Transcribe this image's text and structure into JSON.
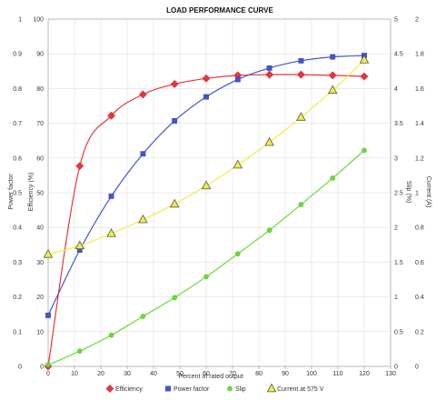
{
  "chart_data": {
    "type": "scatter",
    "title": "LOAD PERFORMANCE CURVE",
    "xlabel": "Percent of rated output",
    "ylabel_left_outer": "Power factor",
    "ylabel_left_inner": "Efficiency (%)",
    "ylabel_right_inner": "Slip (%)",
    "ylabel_right_outer": "Current (A)",
    "xlim": [
      0,
      130
    ],
    "x_ticks": [
      "0",
      "10",
      "20",
      "30",
      "40",
      "50",
      "60",
      "70",
      "80",
      "90",
      "100",
      "110",
      "120",
      "130"
    ],
    "y_left_outer_ticks": [
      "0",
      "0.1",
      "0.2",
      "0.3",
      "0.4",
      "0.5",
      "0.6",
      "0.7",
      "0.8",
      "0.9",
      "1"
    ],
    "y_left_inner_ticks": [
      "0",
      "10",
      "20",
      "30",
      "40",
      "50",
      "60",
      "70",
      "80",
      "90",
      "100"
    ],
    "y_right_inner_ticks": [
      "0",
      "0.5",
      "1",
      "1.5",
      "2",
      "2.5",
      "3",
      "3.5",
      "4",
      "4.5",
      "5"
    ],
    "y_right_outer_ticks": [
      "0",
      "0.2",
      "0.4",
      "0.6",
      "0.8",
      "1",
      "1.2",
      "1.4",
      "1.6",
      "1.8",
      "2"
    ],
    "grid": true,
    "legend_position": "bottom",
    "series": [
      {
        "name": "Efficiency",
        "axis": "efficiency",
        "ylim": [
          0,
          100
        ],
        "color": "#e8353b",
        "marker": "diamond",
        "x": [
          0,
          12,
          24,
          36,
          48,
          60,
          72,
          84,
          96,
          108,
          120
        ],
        "y": [
          0,
          57.7,
          72.2,
          78.3,
          81.3,
          82.9,
          83.8,
          84.0,
          84.0,
          83.8,
          83.5
        ]
      },
      {
        "name": "Power factor",
        "axis": "power_factor",
        "ylim": [
          0,
          1
        ],
        "color": "#4455cc",
        "marker": "square",
        "x": [
          0,
          12,
          24,
          36,
          48,
          60,
          72,
          84,
          96,
          108,
          120
        ],
        "y": [
          0.147,
          0.335,
          0.49,
          0.612,
          0.707,
          0.776,
          0.826,
          0.859,
          0.88,
          0.891,
          0.895
        ]
      },
      {
        "name": "Slip",
        "axis": "slip",
        "ylim": [
          0,
          5
        ],
        "color": "#66dd33",
        "marker": "circle",
        "x": [
          0,
          12,
          24,
          36,
          48,
          60,
          72,
          84,
          96,
          108,
          120
        ],
        "y": [
          0.02,
          0.22,
          0.45,
          0.72,
          0.99,
          1.29,
          1.62,
          1.96,
          2.33,
          2.71,
          3.11
        ]
      },
      {
        "name": "Current at 575 V",
        "axis": "current",
        "ylim": [
          0,
          2
        ],
        "color": "#eeee44",
        "marker": "triangle",
        "x": [
          0,
          12,
          24,
          36,
          48,
          60,
          72,
          84,
          96,
          108,
          120
        ],
        "y": [
          0.645,
          0.695,
          0.765,
          0.845,
          0.935,
          1.04,
          1.16,
          1.29,
          1.435,
          1.59,
          1.765
        ]
      }
    ]
  }
}
